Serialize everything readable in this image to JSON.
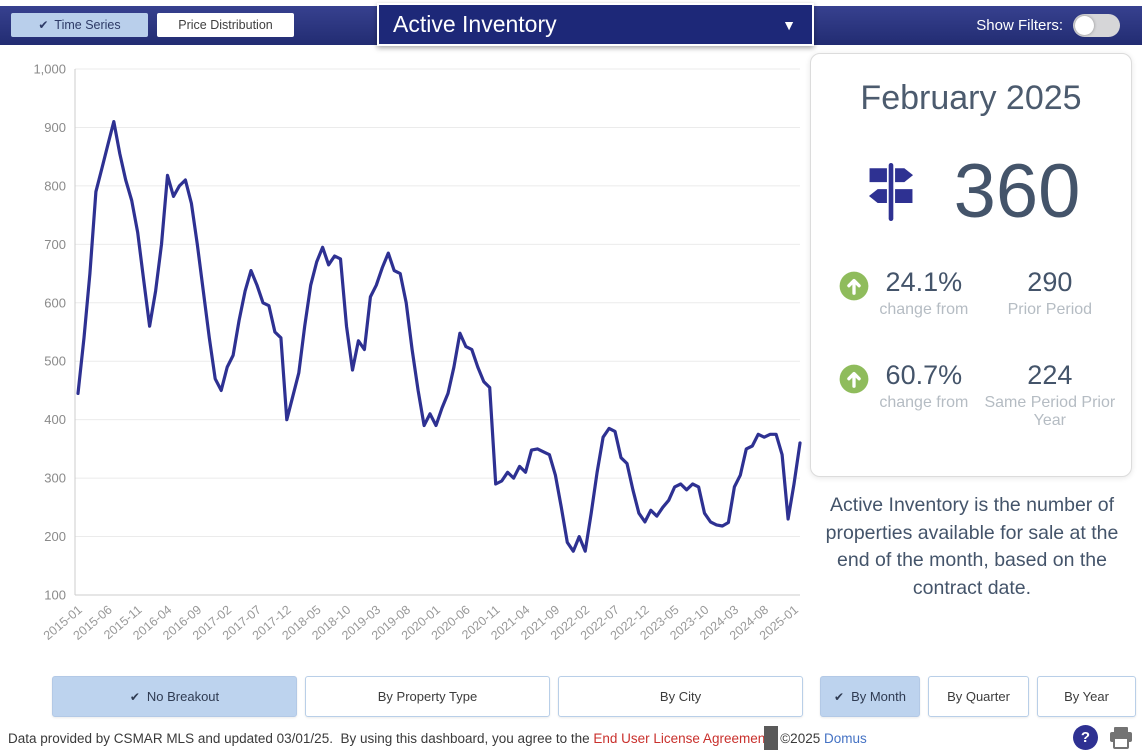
{
  "icons": {
    "check": "✔",
    "caret_down": "▼",
    "question": "?"
  },
  "colors": {
    "topbar_navy": "#222c72",
    "accent_indigo": "#2e3192",
    "selected_button_blue": "#bdd3ee",
    "up_green": "#8fbc5c",
    "slate_text": "#44546a",
    "muted_caption": "#b5bcc3",
    "license_link_red": "#c9302c",
    "company_link_blue": "#4472c4"
  },
  "topbar": {
    "time_series_label": "Time Series",
    "price_distribution_label": "Price Distribution",
    "metric_dropdown_value": "Active Inventory",
    "show_filters_label": "Show Filters:"
  },
  "summary_panel": {
    "month_title": "February 2025",
    "current_value": "360",
    "stats": [
      {
        "direction": "up",
        "percent": "24.1%",
        "caption": "change from",
        "value": "290",
        "value_caption": "Prior Period"
      },
      {
        "direction": "up",
        "percent": "60.7%",
        "caption": "change from",
        "value": "224",
        "value_caption": "Same Period Prior Year"
      }
    ]
  },
  "description": "Active Inventory is the number of properties available for sale at the end of the month, based on the contract date.",
  "breakouts": {
    "left": [
      {
        "label": "No Breakout",
        "selected": true
      },
      {
        "label": "By Property Type",
        "selected": false
      },
      {
        "label": "By City",
        "selected": false
      }
    ],
    "right": [
      {
        "label": "By Month",
        "selected": true
      },
      {
        "label": "By Quarter",
        "selected": false
      },
      {
        "label": "By Year",
        "selected": false
      }
    ]
  },
  "footer": {
    "text_before_link": "Data provided by CSMAR MLS and updated 03/01/25.  By using this dashboard, you agree to the ",
    "license_link": "End User License Agreement",
    "text_between": ".  ©2025 ",
    "company_link": "Domus"
  },
  "chart_data": {
    "type": "line",
    "series_name": "Active Inventory",
    "start_month": "2015-01",
    "end_month": "2025-02",
    "x_tick_step": 5,
    "x_tick_labels": [
      "2015-01",
      "2015-06",
      "2015-11",
      "2016-04",
      "2016-09",
      "2017-02",
      "2017-07",
      "2017-12",
      "2018-05",
      "2018-10",
      "2019-03",
      "2019-08",
      "2020-01",
      "2020-06",
      "2020-11",
      "2021-04",
      "2021-09",
      "2022-02",
      "2022-07",
      "2022-12",
      "2023-05",
      "2023-10",
      "2024-03",
      "2024-08",
      "2025-01"
    ],
    "y_ticks": [
      1000,
      900,
      800,
      700,
      600,
      500,
      400,
      300,
      200,
      100
    ],
    "ylim": [
      100,
      1000
    ],
    "grid": true,
    "legend": "none",
    "line_color": "#2e3192",
    "values": [
      445,
      540,
      650,
      790,
      830,
      870,
      910,
      855,
      810,
      775,
      720,
      640,
      560,
      620,
      700,
      818,
      782,
      800,
      810,
      770,
      700,
      620,
      540,
      470,
      450,
      490,
      510,
      570,
      620,
      655,
      630,
      600,
      595,
      550,
      540,
      400,
      440,
      480,
      560,
      630,
      670,
      695,
      665,
      680,
      675,
      560,
      485,
      535,
      520,
      610,
      630,
      660,
      685,
      655,
      650,
      600,
      520,
      450,
      390,
      410,
      390,
      420,
      445,
      490,
      548,
      525,
      520,
      490,
      465,
      455,
      290,
      295,
      310,
      300,
      320,
      310,
      348,
      350,
      345,
      340,
      305,
      250,
      190,
      175,
      200,
      175,
      240,
      310,
      370,
      385,
      380,
      335,
      325,
      280,
      240,
      225,
      245,
      235,
      250,
      262,
      285,
      290,
      280,
      290,
      285,
      240,
      225,
      220,
      218,
      224,
      285,
      305,
      350,
      355,
      375,
      370,
      375,
      375,
      340,
      230,
      290,
      360
    ]
  }
}
